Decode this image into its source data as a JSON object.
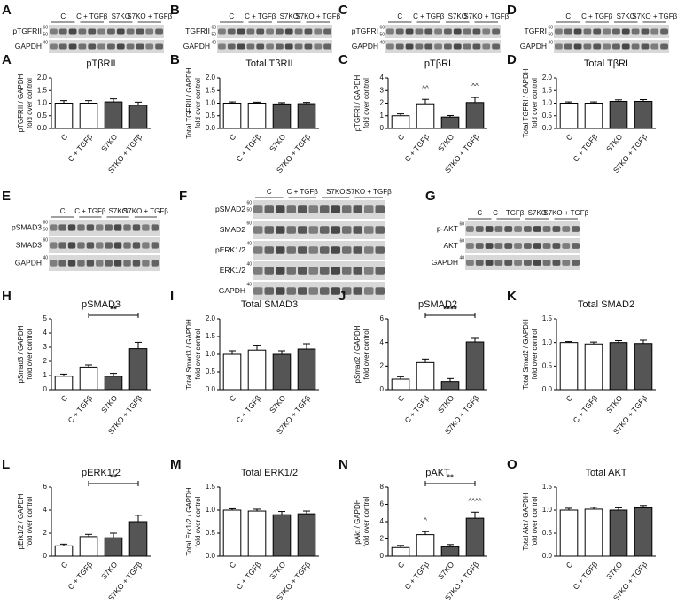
{
  "blots": [
    {
      "panel": "A",
      "groups": [
        "C",
        "C + TGFβ",
        "S7KO",
        "S7KO + TGFβ"
      ],
      "rows": [
        {
          "label": "pTGFRII",
          "mw": [
            60,
            50
          ]
        },
        {
          "label": "GAPDH",
          "mw": [
            40
          ]
        }
      ]
    },
    {
      "panel": "B",
      "groups": [
        "C",
        "C + TGFβ",
        "S7KO",
        "S7KO + TGFβ"
      ],
      "rows": [
        {
          "label": "TGFRII",
          "mw": [
            60,
            50
          ]
        },
        {
          "label": "GAPDH",
          "mw": [
            40
          ]
        }
      ]
    },
    {
      "panel": "C",
      "groups": [
        "C",
        "C + TGFβ",
        "S7KO",
        "S7KO + TGFβ"
      ],
      "rows": [
        {
          "label": "pTGFRI",
          "mw": [
            60,
            50
          ]
        },
        {
          "label": "GAPDH",
          "mw": [
            40
          ]
        }
      ]
    },
    {
      "panel": "D",
      "groups": [
        "C",
        "C + TGFβ",
        "S7KO",
        "S7KO + TGFβ"
      ],
      "rows": [
        {
          "label": "TGFRI",
          "mw": [
            60,
            50
          ]
        },
        {
          "label": "GAPDH",
          "mw": [
            40
          ]
        }
      ]
    },
    {
      "panel": "E",
      "groups": [
        "C",
        "C + TGFβ",
        "S7KO",
        "S7KO + TGFβ"
      ],
      "rows": [
        {
          "label": "pSMAD3",
          "mw": [
            60,
            50
          ]
        },
        {
          "label": "SMAD3",
          "mw": [
            60
          ]
        },
        {
          "label": "GAPDH",
          "mw": [
            40
          ]
        }
      ]
    },
    {
      "panel": "F",
      "groups": [
        "C",
        "C + TGFβ",
        "S7KO",
        "S7KO + TGFβ"
      ],
      "rows": [
        {
          "label": "pSMAD2",
          "mw": [
            60,
            50
          ]
        },
        {
          "label": "SMAD2",
          "mw": [
            60
          ]
        },
        {
          "label": "pERK1/2",
          "mw": [
            40
          ]
        },
        {
          "label": "ERK1/2",
          "mw": [
            40
          ]
        },
        {
          "label": "GAPDH",
          "mw": [
            40
          ]
        }
      ]
    },
    {
      "panel": "G",
      "groups": [
        "C",
        "C + TGFβ",
        "S7KO",
        "S7KO + TGFβ"
      ],
      "rows": [
        {
          "label": "p-AKT",
          "mw": [
            60
          ]
        },
        {
          "label": "AKT",
          "mw": [
            60
          ]
        },
        {
          "label": "GAPDH",
          "mw": [
            40
          ]
        }
      ]
    }
  ],
  "chart_data": [
    {
      "type": "bar",
      "panel": "A",
      "title": "pTβRII",
      "ylabel": [
        "pTGFRII / GAPDH",
        "fold over control"
      ],
      "categories": [
        "C",
        "C + TGFβ",
        "S7KO",
        "S7KO + TGFβ"
      ],
      "values": [
        1.0,
        1.0,
        1.05,
        0.92
      ],
      "errors": [
        0.1,
        0.1,
        0.12,
        0.12
      ],
      "colors": [
        "#ffffff",
        "#ffffff",
        "#555555",
        "#555555"
      ],
      "ylim": [
        0,
        2
      ],
      "yticks": [
        {
          "value": 0,
          "label": "0.0"
        },
        {
          "value": 0.5,
          "label": "0.5"
        },
        {
          "value": 1,
          "label": "1.0"
        },
        {
          "value": 1.5,
          "label": "1.5"
        },
        {
          "value": 2,
          "label": "2.0"
        }
      ]
    },
    {
      "type": "bar",
      "panel": "B",
      "title": "Total TβRII",
      "ylabel": [
        "Total TGFRII / GAPDH",
        "fold over control"
      ],
      "categories": [
        "C",
        "C + TGFβ",
        "S7KO",
        "S7KO + TGFβ"
      ],
      "values": [
        1.0,
        1.0,
        0.97,
        0.98
      ],
      "errors": [
        0.05,
        0.04,
        0.05,
        0.05
      ],
      "colors": [
        "#ffffff",
        "#ffffff",
        "#555555",
        "#555555"
      ],
      "ylim": [
        0,
        2
      ],
      "yticks": [
        {
          "value": 0,
          "label": "0.0"
        },
        {
          "value": 0.5,
          "label": "0.5"
        },
        {
          "value": 1,
          "label": "1.0"
        },
        {
          "value": 1.5,
          "label": "1.5"
        },
        {
          "value": 2,
          "label": "2.0"
        }
      ]
    },
    {
      "type": "bar",
      "panel": "C",
      "title": "pTβRI",
      "ylabel": [
        "pTGFRI / GAPDH",
        "fold over control"
      ],
      "categories": [
        "C",
        "C + TGFβ",
        "S7KO",
        "S7KO + TGFβ"
      ],
      "values": [
        1.0,
        1.95,
        0.9,
        2.05
      ],
      "errors": [
        0.15,
        0.35,
        0.12,
        0.4
      ],
      "colors": [
        "#ffffff",
        "#ffffff",
        "#555555",
        "#555555"
      ],
      "ylim": [
        0,
        4
      ],
      "yticks": [
        0,
        1,
        2,
        3,
        4
      ],
      "markers": [
        {
          "label": "^^",
          "category": "C + TGFβ"
        },
        {
          "label": "^^",
          "category": "S7KO + TGFβ"
        }
      ]
    },
    {
      "type": "bar",
      "panel": "D",
      "title": "Total TβRI",
      "ylabel": [
        "Total TGFRI / GAPDH",
        "fold over control"
      ],
      "categories": [
        "C",
        "C + TGFβ",
        "S7KO",
        "S7KO + TGFβ"
      ],
      "values": [
        1.0,
        1.0,
        1.07,
        1.07
      ],
      "errors": [
        0.05,
        0.05,
        0.06,
        0.07
      ],
      "colors": [
        "#ffffff",
        "#ffffff",
        "#555555",
        "#555555"
      ],
      "ylim": [
        0,
        2
      ],
      "yticks": [
        {
          "value": 0,
          "label": "0.0"
        },
        {
          "value": 0.5,
          "label": "0.5"
        },
        {
          "value": 1,
          "label": "1.0"
        },
        {
          "value": 1.5,
          "label": "1.5"
        },
        {
          "value": 2,
          "label": "2.0"
        }
      ]
    },
    {
      "type": "bar",
      "panel": "H",
      "title": "pSMAD3",
      "ylabel": [
        "pSmad3 / GAPDH",
        "fold over control"
      ],
      "categories": [
        "C",
        "C + TGFβ",
        "S7KO",
        "S7KO + TGFβ"
      ],
      "values": [
        0.95,
        1.6,
        0.95,
        2.9
      ],
      "errors": [
        0.15,
        0.15,
        0.2,
        0.45
      ],
      "colors": [
        "#ffffff",
        "#ffffff",
        "#555555",
        "#555555"
      ],
      "ylim": [
        0,
        5
      ],
      "yticks": [
        0,
        1,
        2,
        3,
        4,
        5
      ],
      "significance": [
        {
          "label": "**",
          "categories": [
            "C + TGFβ",
            "S7KO + TGFβ"
          ]
        }
      ]
    },
    {
      "type": "bar",
      "panel": "I",
      "title": "Total SMAD3",
      "ylabel": [
        "Total Smad3 / GAPDH",
        "fold over control"
      ],
      "categories": [
        "C",
        "C + TGFβ",
        "S7KO",
        "S7KO + TGFβ"
      ],
      "values": [
        1.0,
        1.12,
        1.0,
        1.15
      ],
      "errors": [
        0.1,
        0.12,
        0.1,
        0.15
      ],
      "colors": [
        "#ffffff",
        "#ffffff",
        "#555555",
        "#555555"
      ],
      "ylim": [
        0,
        2
      ],
      "yticks": [
        {
          "value": 0,
          "label": "0.0"
        },
        {
          "value": 0.5,
          "label": "0.5"
        },
        {
          "value": 1,
          "label": "1.0"
        },
        {
          "value": 1.5,
          "label": "1.5"
        },
        {
          "value": 2,
          "label": "2.0"
        }
      ]
    },
    {
      "type": "bar",
      "panel": "J",
      "title": "pSMAD2",
      "ylabel": [
        "pSmad2 / GAPDH",
        "fold over control"
      ],
      "categories": [
        "C",
        "C + TGFβ",
        "S7KO",
        "S7KO + TGFβ"
      ],
      "values": [
        0.9,
        2.3,
        0.7,
        4.05
      ],
      "errors": [
        0.2,
        0.3,
        0.25,
        0.3
      ],
      "colors": [
        "#ffffff",
        "#ffffff",
        "#555555",
        "#555555"
      ],
      "ylim": [
        0,
        6
      ],
      "yticks": [
        0,
        2,
        4,
        6
      ],
      "significance": [
        {
          "label": "****",
          "categories": [
            "C + TGFβ",
            "S7KO + TGFβ"
          ]
        }
      ]
    },
    {
      "type": "bar",
      "panel": "K",
      "title": "Total SMAD2",
      "ylabel": [
        "Total Smad2 / GAPDH",
        "fold over control"
      ],
      "categories": [
        "C",
        "C + TGFβ",
        "S7KO",
        "S7KO + TGFβ"
      ],
      "values": [
        1.0,
        0.97,
        1.0,
        0.98
      ],
      "errors": [
        0.02,
        0.04,
        0.04,
        0.07
      ],
      "colors": [
        "#ffffff",
        "#ffffff",
        "#555555",
        "#555555"
      ],
      "ylim": [
        0,
        1.5
      ],
      "yticks": [
        {
          "value": 0,
          "label": "0.0"
        },
        {
          "value": 0.5,
          "label": "0.5"
        },
        {
          "value": 1,
          "label": "1.0"
        },
        {
          "value": 1.5,
          "label": "1.5"
        }
      ]
    },
    {
      "type": "bar",
      "panel": "L",
      "title": "pERK1/2",
      "ylabel": [
        "pErk1/2 / GAPDH",
        "fold over control"
      ],
      "categories": [
        "C",
        "C + TGFβ",
        "S7KO",
        "S7KO + TGFβ"
      ],
      "values": [
        0.9,
        1.7,
        1.6,
        3.0
      ],
      "errors": [
        0.15,
        0.2,
        0.4,
        0.55
      ],
      "colors": [
        "#ffffff",
        "#ffffff",
        "#555555",
        "#555555"
      ],
      "ylim": [
        0,
        6
      ],
      "yticks": [
        0,
        2,
        4,
        6
      ],
      "significance": [
        {
          "label": "**",
          "categories": [
            "C + TGFβ",
            "S7KO + TGFβ"
          ]
        }
      ]
    },
    {
      "type": "bar",
      "panel": "M",
      "title": "Total ERK1/2",
      "ylabel": [
        "Total Erk1/2 / GAPDH",
        "fold over control"
      ],
      "categories": [
        "C",
        "C + TGFβ",
        "S7KO",
        "S7KO + TGFβ"
      ],
      "values": [
        1.0,
        0.98,
        0.9,
        0.92
      ],
      "errors": [
        0.03,
        0.04,
        0.07,
        0.06
      ],
      "colors": [
        "#ffffff",
        "#ffffff",
        "#555555",
        "#555555"
      ],
      "ylim": [
        0,
        1.5
      ],
      "yticks": [
        {
          "value": 0,
          "label": "0.0"
        },
        {
          "value": 0.5,
          "label": "0.5"
        },
        {
          "value": 1,
          "label": "1.0"
        },
        {
          "value": 1.5,
          "label": "1.5"
        }
      ]
    },
    {
      "type": "bar",
      "panel": "N",
      "title": "pAKT",
      "ylabel": [
        "pAkt / GAPDH",
        "fold over control"
      ],
      "categories": [
        "C",
        "C + TGFβ",
        "S7KO",
        "S7KO + TGFβ"
      ],
      "values": [
        1.0,
        2.5,
        1.1,
        4.4
      ],
      "errors": [
        0.25,
        0.35,
        0.25,
        0.7
      ],
      "colors": [
        "#ffffff",
        "#ffffff",
        "#555555",
        "#555555"
      ],
      "ylim": [
        0,
        8
      ],
      "yticks": [
        0,
        2,
        4,
        6,
        8
      ],
      "significance": [
        {
          "label": "**",
          "categories": [
            "C + TGFβ",
            "S7KO + TGFβ"
          ]
        }
      ],
      "markers": [
        {
          "label": "^",
          "category": "C + TGFβ"
        },
        {
          "label": "^^^^",
          "category": "S7KO + TGFβ"
        }
      ]
    },
    {
      "type": "bar",
      "panel": "O",
      "title": "Total AKT",
      "ylabel": [
        "Total Akt / GAPDH",
        "fold over control"
      ],
      "categories": [
        "C",
        "C + TGFβ",
        "S7KO",
        "S7KO + TGFβ"
      ],
      "values": [
        1.0,
        1.02,
        1.0,
        1.05
      ],
      "errors": [
        0.04,
        0.04,
        0.05,
        0.05
      ],
      "colors": [
        "#ffffff",
        "#ffffff",
        "#555555",
        "#555555"
      ],
      "ylim": [
        0,
        1.5
      ],
      "yticks": [
        {
          "value": 0,
          "label": "0.0"
        },
        {
          "value": 0.5,
          "label": "0.5"
        },
        {
          "value": 1,
          "label": "1.0"
        },
        {
          "value": 1.5,
          "label": "1.5"
        }
      ]
    }
  ]
}
